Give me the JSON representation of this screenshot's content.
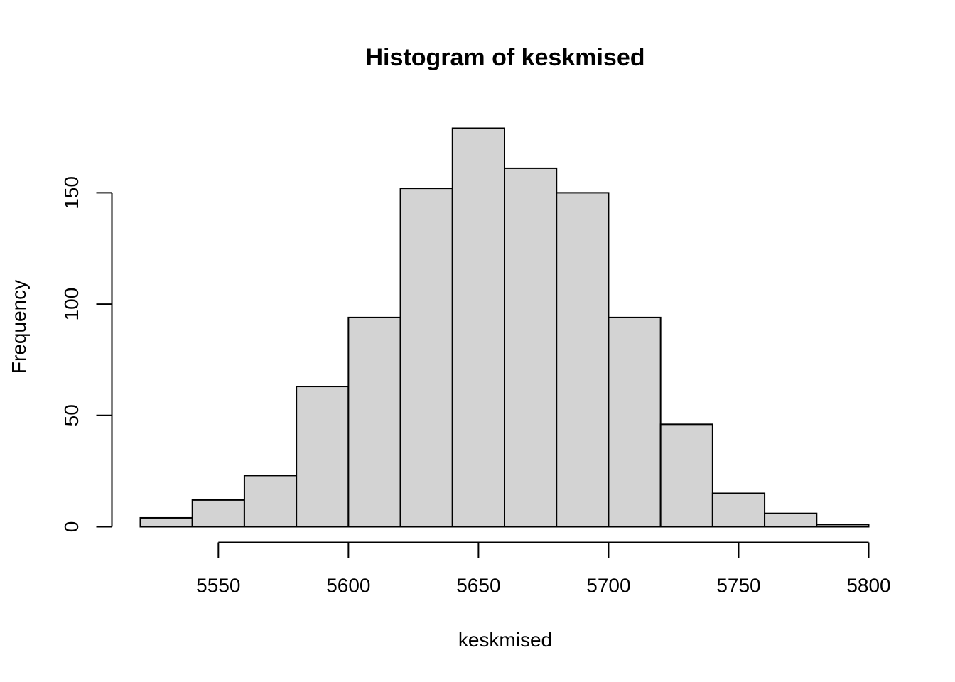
{
  "chart_data": {
    "type": "bar",
    "title": "Histogram of keskmised",
    "xlabel": "keskmised",
    "ylabel": "Frequency",
    "bin_edges": [
      5520,
      5540,
      5560,
      5580,
      5600,
      5620,
      5640,
      5660,
      5680,
      5700,
      5720,
      5740,
      5760,
      5780,
      5800
    ],
    "values": [
      4,
      12,
      23,
      63,
      94,
      152,
      179,
      161,
      150,
      94,
      46,
      15,
      6,
      1
    ],
    "xlim": [
      5520,
      5800
    ],
    "ylim": [
      0,
      179
    ],
    "x_ticks": [
      5550,
      5600,
      5650,
      5700,
      5750,
      5800
    ],
    "y_ticks": [
      0,
      50,
      100,
      150
    ],
    "bar_color": "#d3d3d3",
    "grid": false
  }
}
